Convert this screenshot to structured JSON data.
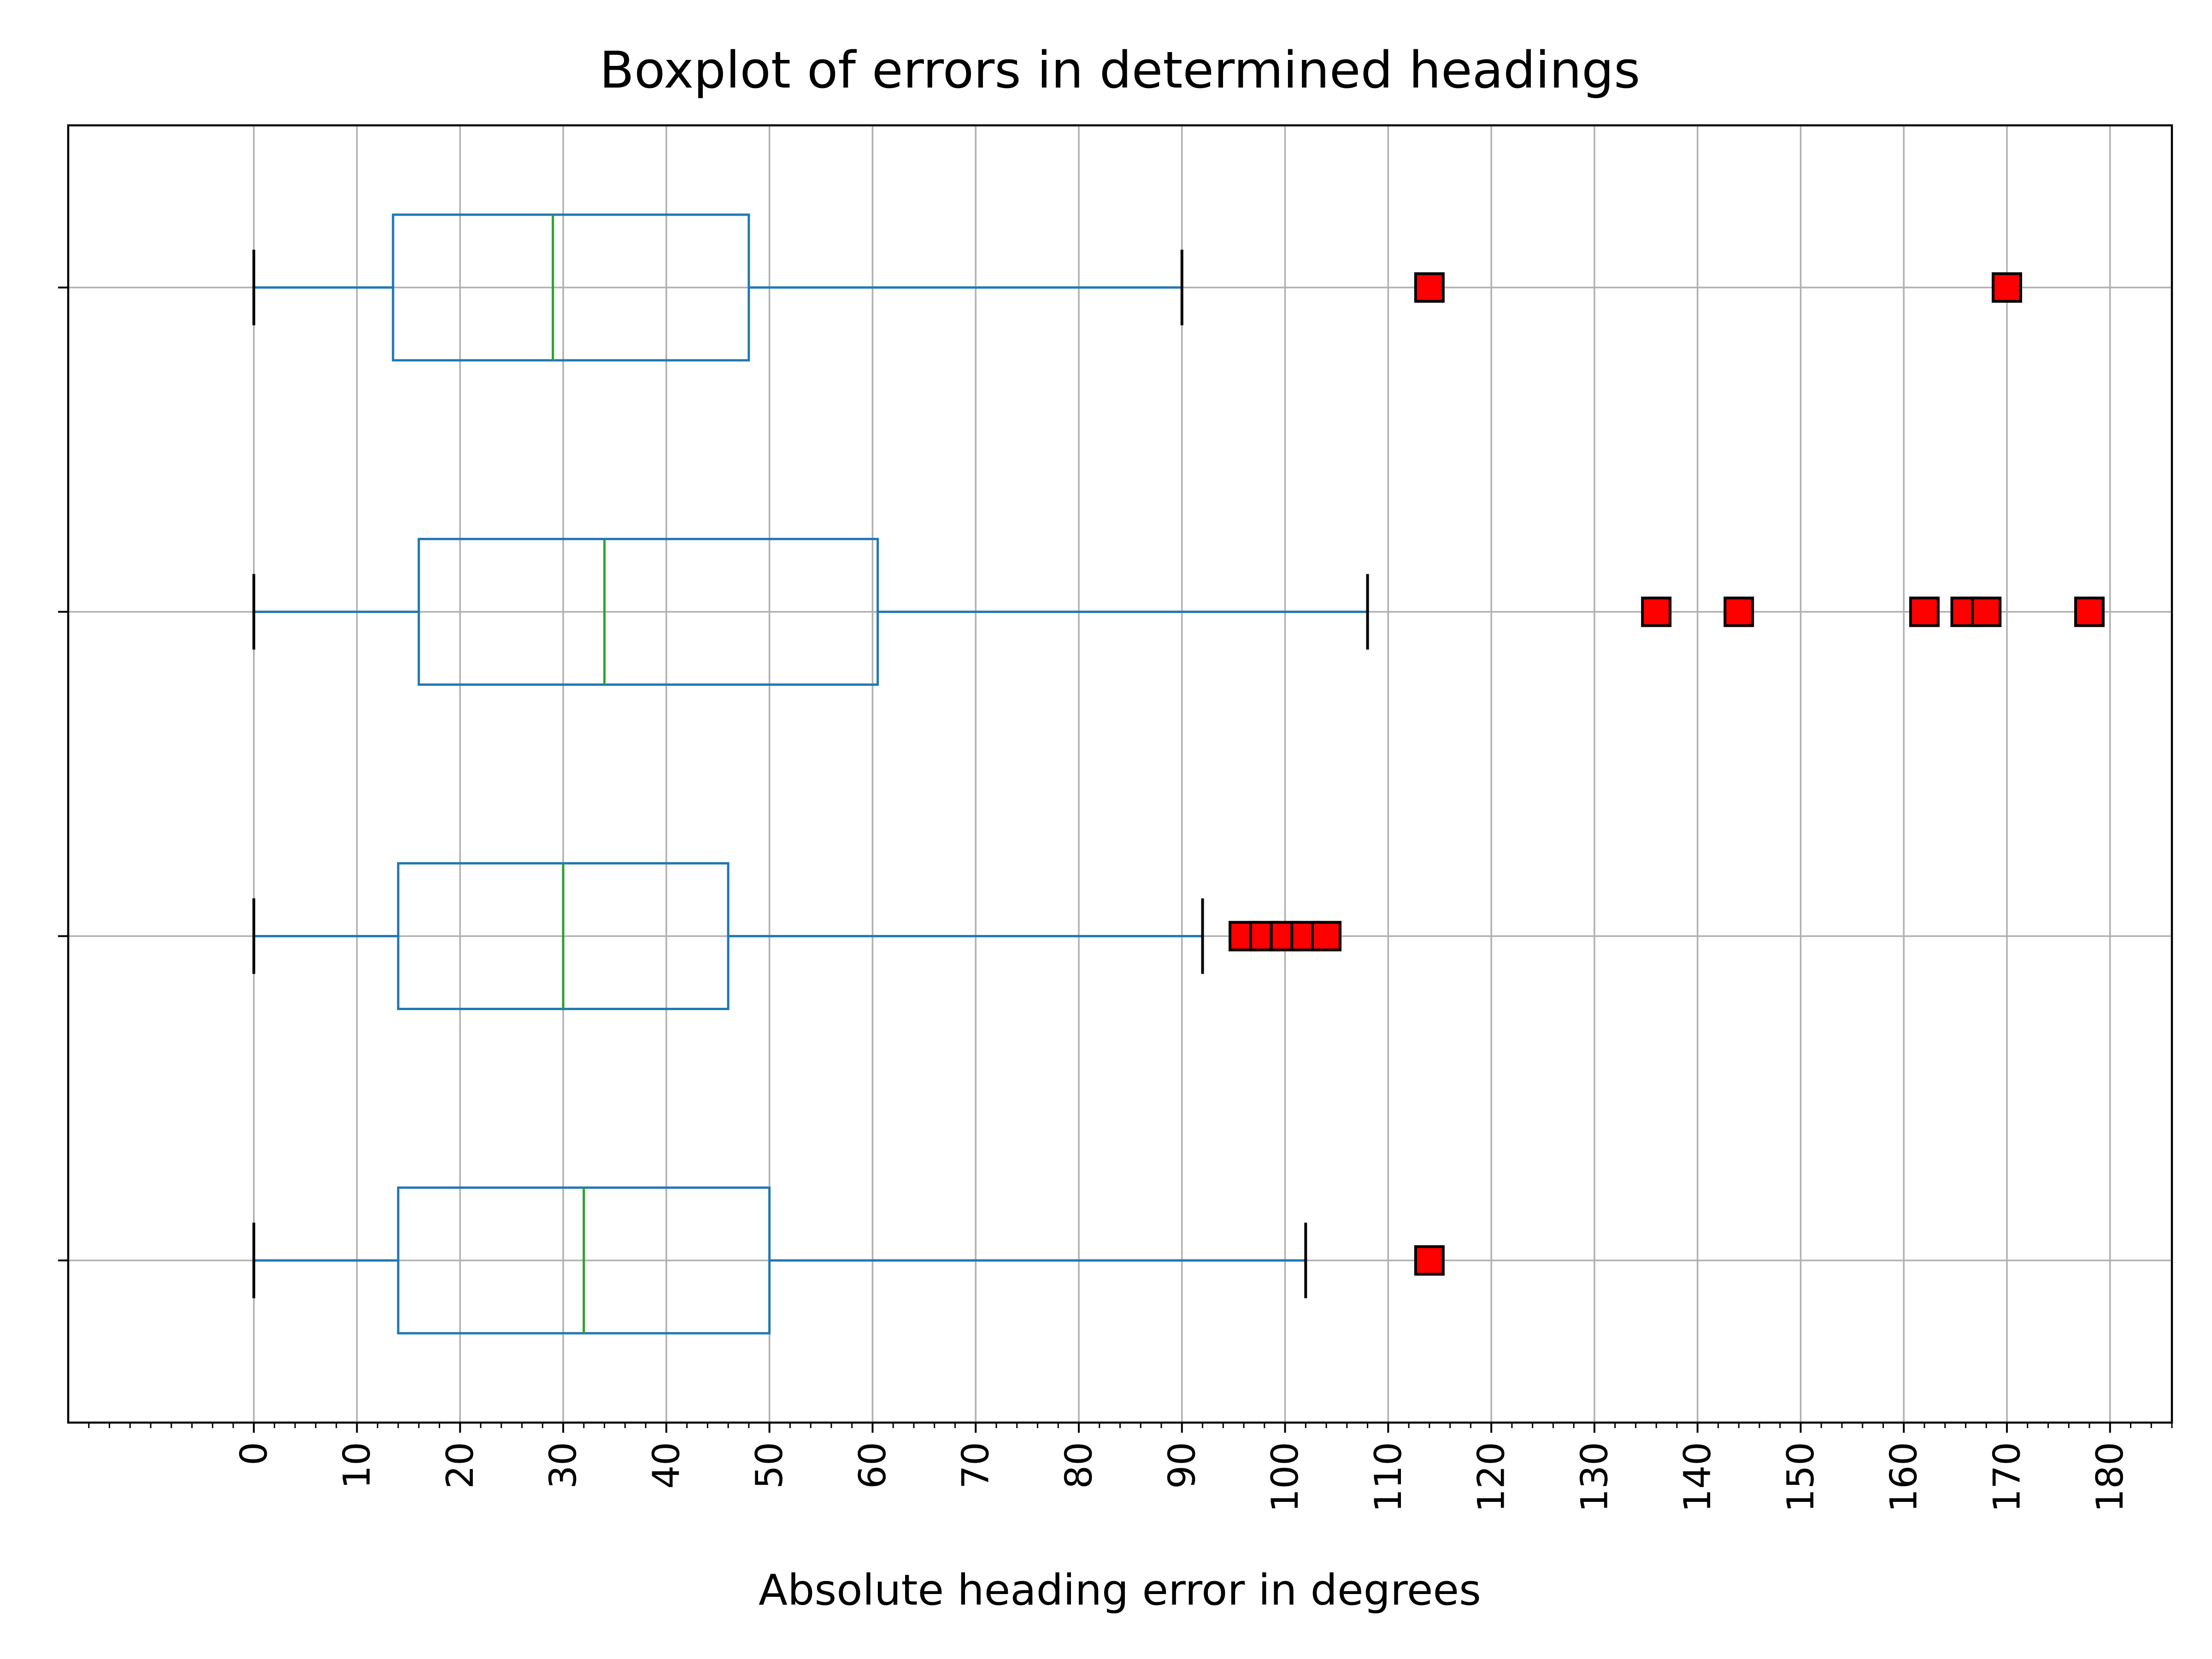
{
  "chart_data": {
    "type": "boxplot",
    "orientation": "horizontal",
    "title": "Boxplot of errors in determined headings",
    "xlabel": "Absolute heading error in degrees",
    "ylabel": "",
    "xlim": [
      -18,
      186
    ],
    "x_ticks": [
      0,
      10,
      20,
      30,
      40,
      50,
      60,
      70,
      80,
      90,
      100,
      110,
      120,
      130,
      140,
      150,
      160,
      170,
      180
    ],
    "x_minor_tick_step": 2,
    "grid": true,
    "colors": {
      "box": "#1f77b4",
      "median": "#2ca02c",
      "whisker_cap": "#000000",
      "outlier_fill": "#ff0000",
      "outlier_edge": "#000000",
      "grid": "#b0b0b0"
    },
    "boxes": [
      {
        "position": 1,
        "whisker_low": 0,
        "q1": 14,
        "median": 32,
        "q3": 50,
        "whisker_high": 102,
        "outliers": [
          114
        ]
      },
      {
        "position": 2,
        "whisker_low": 0,
        "q1": 14,
        "median": 30,
        "q3": 46,
        "whisker_high": 92,
        "outliers": [
          96,
          98,
          100,
          102,
          104
        ]
      },
      {
        "position": 3,
        "whisker_low": 0,
        "q1": 16,
        "median": 34,
        "q3": 60.5,
        "whisker_high": 108,
        "outliers": [
          136,
          144,
          162,
          166,
          168,
          178
        ]
      },
      {
        "position": 4,
        "whisker_low": 0,
        "q1": 13.5,
        "median": 29,
        "q3": 48,
        "whisker_high": 90,
        "outliers": [
          114,
          170
        ]
      }
    ]
  }
}
